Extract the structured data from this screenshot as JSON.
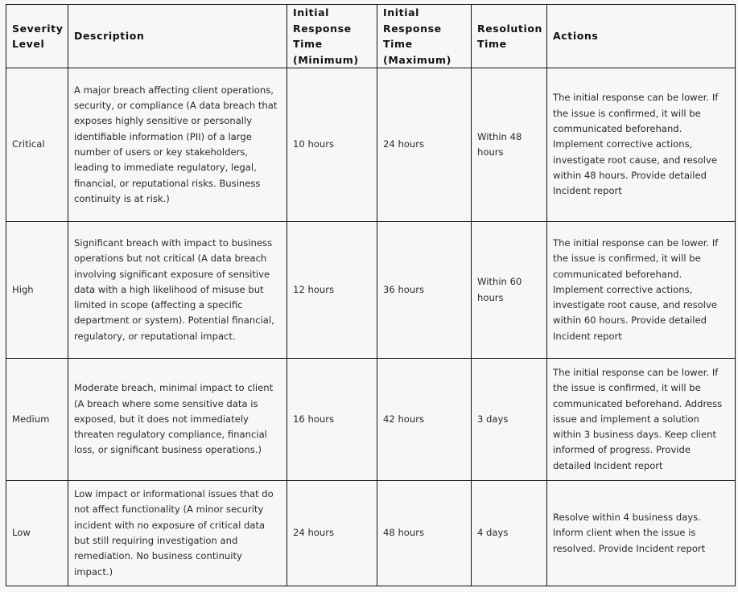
{
  "headers": [
    "Severity Level",
    "Description",
    "Initial Response Time (Minimum)",
    "Initial Response Time (Maximum)",
    "Resolution Time",
    "Actions"
  ],
  "rows": [
    {
      "severity": "Critical",
      "description": "A major breach affecting client operations, security, or compliance (A data breach that exposes highly sensitive or personally identifiable information (PII) of a large number of users or key stakeholders, leading to immediate regulatory, legal, financial, or reputational risks. Business continuity is at risk.)",
      "min": "10 hours",
      "max": "24 hours",
      "resolution": "Within 48 hours",
      "actions": "The initial response can be lower. If the issue is confirmed, it will be communicated beforehand. Implement corrective actions, investigate root cause, and resolve within 48 hours. Provide detailed Incident report"
    },
    {
      "severity": "High",
      "description": "Significant breach with impact to business operations but not critical (A data breach involving significant exposure of sensitive data with a high likelihood of misuse but limited in scope (affecting a specific department or system). Potential financial, regulatory, or reputational impact.",
      "min": "12 hours",
      "max": "36 hours",
      "resolution": "Within 60 hours",
      "actions": "The initial response can be lower. If the issue is confirmed, it will be communicated beforehand. Implement corrective actions, investigate root cause, and resolve within 60 hours. Provide detailed Incident report"
    },
    {
      "severity": "Medium",
      "description": "Moderate breach, minimal impact to client (A breach where some sensitive data is exposed, but it does not immediately threaten regulatory compliance, financial loss, or significant business operations.)",
      "min": "16 hours",
      "max": "42 hours",
      "resolution": "3 days",
      "actions": "The initial response can be lower. If the issue is confirmed, it will be communicated beforehand. Address issue and implement a solution within 3 business days. Keep client informed of progress. Provide detailed Incident report"
    },
    {
      "severity": "Low",
      "description": "Low impact or informational issues that do not affect functionality (A minor security incident with no exposure of critical data but still requiring investigation and remediation. No business continuity impact.)",
      "min": "24 hours",
      "max": "48 hours",
      "resolution": "4 days",
      "actions": "Resolve within 4 business days. Inform client when the issue is resolved. Provide Incident report"
    }
  ]
}
